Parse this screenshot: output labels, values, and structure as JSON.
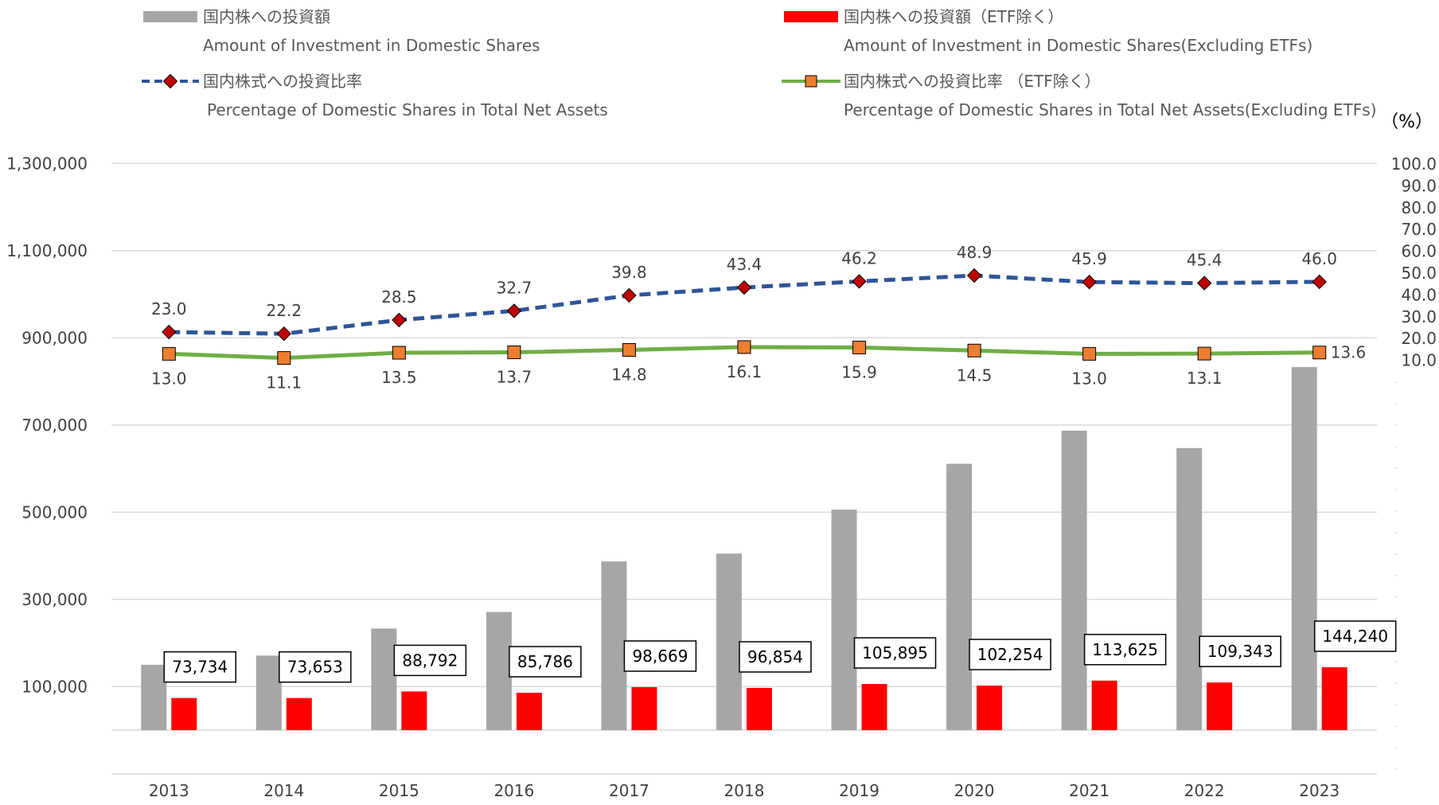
{
  "legend": [
    {
      "jp": "国内株への投資額",
      "en": "Amount of Investment in Domestic Shares",
      "type": "bar",
      "color": "#a6a6a6"
    },
    {
      "jp": "国内株への投資額（ETF除く）",
      "en": "Amount of Investment in Domestic Shares(Excluding ETFs)",
      "type": "bar",
      "color": "#ff0000"
    },
    {
      "jp": "国内株式への投資比率",
      "en": "Percentage of Domestic Shares in Total Net Assets",
      "type": "line-dashed",
      "color": "#2f5597"
    },
    {
      "jp": "国内株式への投資比率 （ETF除く）",
      "en": "Percentage of Domestic Shares in Total Net Assets(Excluding ETFs)",
      "type": "line",
      "color": "#70ad47"
    }
  ],
  "right_axis_unit": "（%）",
  "chart_data": {
    "type": "bar",
    "categories": [
      "2013",
      "2014",
      "2015",
      "2016",
      "2017",
      "2018",
      "2019",
      "2020",
      "2021",
      "2022",
      "2023"
    ],
    "left_axis": {
      "ticks": [
        "1,300,000",
        "1,100,000",
        "900,000",
        "700,000",
        "500,000",
        "300,000",
        "100,000"
      ],
      "tick_values": [
        1300000,
        1100000,
        900000,
        700000,
        500000,
        300000,
        100000
      ],
      "ylim": [
        0,
        1300000
      ]
    },
    "right_axis": {
      "ticks": [
        "100.0",
        "90.0",
        "80.0",
        "70.0",
        "60.0",
        "50.0",
        "40.0",
        "30.0",
        "20.0",
        "10.0"
      ],
      "tick_values": [
        100,
        90,
        80,
        70,
        60,
        50,
        40,
        30,
        20,
        10
      ],
      "ylim": [
        0,
        100
      ]
    },
    "series": [
      {
        "name": "国内株への投資額",
        "type": "bar",
        "color": "#a6a6a6",
        "values": [
          150000,
          171000,
          233000,
          271000,
          387000,
          405000,
          506000,
          611000,
          687000,
          647000,
          833000
        ]
      },
      {
        "name": "国内株への投資額（ETF除く）",
        "type": "bar",
        "color": "#ff0000",
        "values": [
          73734,
          73653,
          88792,
          85786,
          98669,
          96854,
          105895,
          102254,
          113625,
          109343,
          144240
        ],
        "labels": [
          "73,734",
          "73,653",
          "88,792",
          "85,786",
          "98,669",
          "96,854",
          "105,895",
          "102,254",
          "113,625",
          "109,343",
          "144,240"
        ]
      },
      {
        "name": "国内株式への投資比率",
        "type": "line",
        "style": "dashed",
        "color": "#2f5597",
        "marker_color": "#c00000",
        "values": [
          23.0,
          22.2,
          28.5,
          32.7,
          39.8,
          43.4,
          46.2,
          48.9,
          45.9,
          45.4,
          46.0
        ],
        "labels": [
          "23.0",
          "22.2",
          "28.5",
          "32.7",
          "39.8",
          "43.4",
          "46.2",
          "48.9",
          "45.9",
          "45.4",
          "46.0"
        ]
      },
      {
        "name": "国内株式への投資比率 （ETF除く）",
        "type": "line",
        "style": "solid",
        "color": "#70ad47",
        "marker_color": "#ed7d31",
        "values": [
          13.0,
          11.1,
          13.5,
          13.7,
          14.8,
          16.1,
          15.9,
          14.5,
          13.0,
          13.1,
          13.6
        ],
        "labels": [
          "13.0",
          "11.1",
          "13.5",
          "13.7",
          "14.8",
          "16.1",
          "15.9",
          "14.5",
          "13.0",
          "13.1",
          "13.6"
        ]
      }
    ],
    "grid": true,
    "legend_position": "top"
  }
}
